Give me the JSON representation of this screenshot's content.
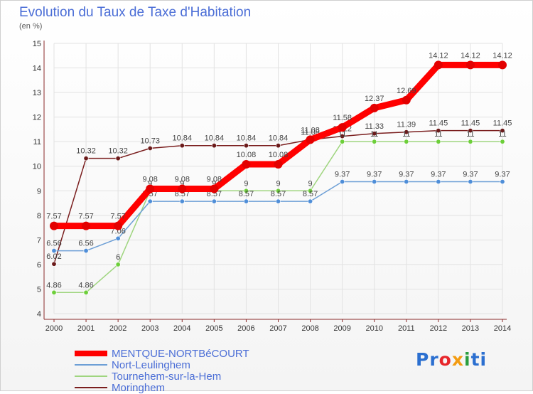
{
  "title": "Evolution du Taux de Taxe d'Habitation",
  "subtitle": "(en %)",
  "logo": {
    "text": "Proxiti",
    "letters": [
      {
        "ch": "P",
        "color": "#2b6fd0"
      },
      {
        "ch": "r",
        "color": "#2b6fd0"
      },
      {
        "ch": "o",
        "color": "#e7262b"
      },
      {
        "ch": "x",
        "color": "#f39c12"
      },
      {
        "ch": "i",
        "color": "#2a9d3e"
      },
      {
        "ch": "t",
        "color": "#2b6fd0"
      },
      {
        "ch": "i",
        "color": "#2b6fd0"
      }
    ]
  },
  "chart_data": {
    "type": "line",
    "x": [
      "2000",
      "2001",
      "2002",
      "2003",
      "2004",
      "2005",
      "2006",
      "2007",
      "2008",
      "2009",
      "2010",
      "2011",
      "2012",
      "2013",
      "2014"
    ],
    "ylim": [
      4,
      15
    ],
    "yticks": [
      4,
      5,
      6,
      7,
      8,
      9,
      10,
      11,
      12,
      13,
      14,
      15
    ],
    "grid": true,
    "legend": "bottom-left",
    "series": [
      {
        "name": "Moringhem",
        "color": "#7a1e1e",
        "marker": "#6b1a1a",
        "values": [
          6.02,
          10.32,
          10.32,
          10.73,
          10.84,
          10.84,
          10.84,
          10.84,
          11.08,
          11.22,
          11.33,
          11.39,
          11.45,
          11.45,
          11.45
        ],
        "labels": [
          "6.02",
          "10.32",
          "10.32",
          "10.73",
          "10.84",
          "10.84",
          "10.84",
          "10.84",
          "11.08",
          "11.22",
          "11.33",
          "11.39",
          "11.45",
          "11.45",
          "11.45"
        ]
      },
      {
        "name": "Tournehem-sur-la-Hem",
        "color": "#9fd57f",
        "marker": "#6dcf3a",
        "values": [
          4.86,
          4.86,
          6,
          9,
          9,
          9,
          9,
          9,
          9,
          11,
          11,
          11,
          11,
          11,
          11
        ],
        "labels": [
          "4.86",
          "4.86",
          "6",
          "9",
          "9",
          "9",
          "9",
          "9",
          "9",
          "11",
          "11",
          "11",
          "11",
          "11",
          "11"
        ]
      },
      {
        "name": "Nort-Leulinghem",
        "color": "#6d9fd6",
        "marker": "#4f8ed8",
        "values": [
          6.56,
          6.56,
          7.06,
          8.57,
          8.57,
          8.57,
          8.57,
          8.57,
          8.57,
          9.37,
          9.37,
          9.37,
          9.37,
          9.37,
          9.37
        ],
        "labels": [
          "6.56",
          "6.56",
          "7.06",
          "8.57",
          "8.57",
          "8.57",
          "8.57",
          "8.57",
          "8.57",
          "9.37",
          "9.37",
          "9.37",
          "9.37",
          "9.37",
          "9.37"
        ]
      },
      {
        "name": "MENTQUE-NORTBéCOURT",
        "color": "#ff0000",
        "marker": "#e30000",
        "main": true,
        "values": [
          7.57,
          7.57,
          7.57,
          9.08,
          9.08,
          9.08,
          10.08,
          10.08,
          11.08,
          11.58,
          12.37,
          12.69,
          14.12,
          14.12,
          14.12
        ],
        "labels": [
          "7.57",
          "7.57",
          "7.57",
          "9.08",
          "9.08",
          "9.08",
          "10.08",
          "10.08",
          "11.08",
          "11.58",
          "12.37",
          "12.69",
          "14.12",
          "14.12",
          "14.12"
        ]
      }
    ],
    "legend_order": [
      "MENTQUE-NORTBéCOURT",
      "Nort-Leulinghem",
      "Tournehem-sur-la-Hem",
      "Moringhem"
    ]
  }
}
